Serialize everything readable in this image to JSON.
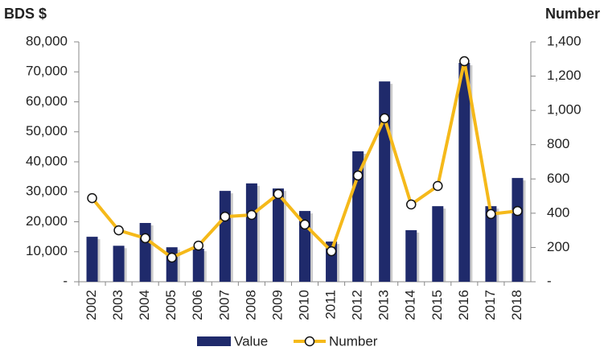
{
  "chart_data": {
    "type": "bar_line",
    "ylabel": "BDS $",
    "y2label": "Number",
    "categories": [
      "2002",
      "2003",
      "2004",
      "2005",
      "2006",
      "2007",
      "2008",
      "2009",
      "2010",
      "2011",
      "2012",
      "2013",
      "2014",
      "2015",
      "2016",
      "2017",
      "2018"
    ],
    "series": [
      {
        "name": "Value",
        "type": "bar",
        "color": "#1f2a6b",
        "values": [
          15000,
          12000,
          19600,
          11500,
          11000,
          30300,
          32800,
          31100,
          23600,
          13400,
          43500,
          66800,
          17200,
          25200,
          73000,
          25200,
          34600
        ]
      },
      {
        "name": "Number",
        "type": "line",
        "axis": "y2",
        "color": "#f5b91a",
        "values": [
          488,
          300,
          254,
          141,
          211,
          380,
          390,
          512,
          334,
          178,
          620,
          954,
          451,
          559,
          1287,
          395,
          413
        ]
      }
    ],
    "ylim": [
      0,
      80000
    ],
    "yticks": [
      {
        "value": 0,
        "label": "-"
      },
      {
        "value": 10000,
        "label": "10,000"
      },
      {
        "value": 20000,
        "label": "20,000"
      },
      {
        "value": 30000,
        "label": "30,000"
      },
      {
        "value": 40000,
        "label": "40,000"
      },
      {
        "value": 50000,
        "label": "50,000"
      },
      {
        "value": 60000,
        "label": "60,000"
      },
      {
        "value": 70000,
        "label": "70,000"
      },
      {
        "value": 80000,
        "label": "80,000"
      }
    ],
    "y2lim": [
      0,
      1400
    ],
    "y2ticks": [
      {
        "value": 0,
        "label": "-"
      },
      200,
      400,
      600,
      800,
      {
        "value": 1000,
        "label": "1,000"
      },
      {
        "value": 1200,
        "label": "1,200"
      },
      {
        "value": 1400,
        "label": "1,400"
      }
    ],
    "legend": "bottom"
  }
}
